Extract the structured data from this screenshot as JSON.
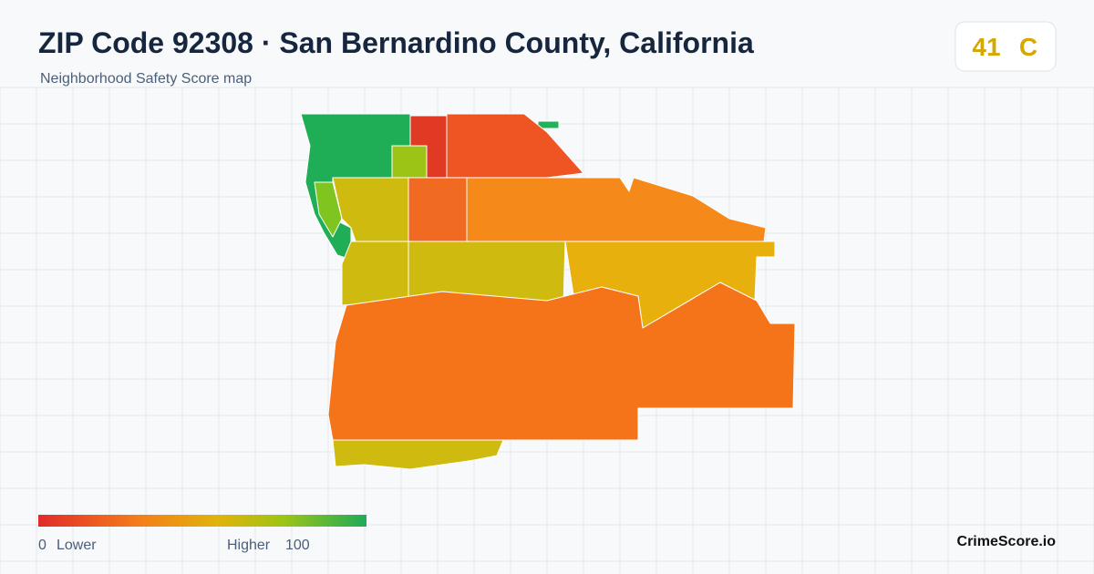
{
  "header": {
    "title": "ZIP Code 92308 · San Bernardino County, California",
    "subtitle": "Neighborhood Safety Score map"
  },
  "score": {
    "value": "41",
    "grade": "C"
  },
  "legend": {
    "min": "0",
    "min_label": "Lower",
    "max_label": "Higher",
    "max": "100"
  },
  "brand": "CrimeScore.io"
}
